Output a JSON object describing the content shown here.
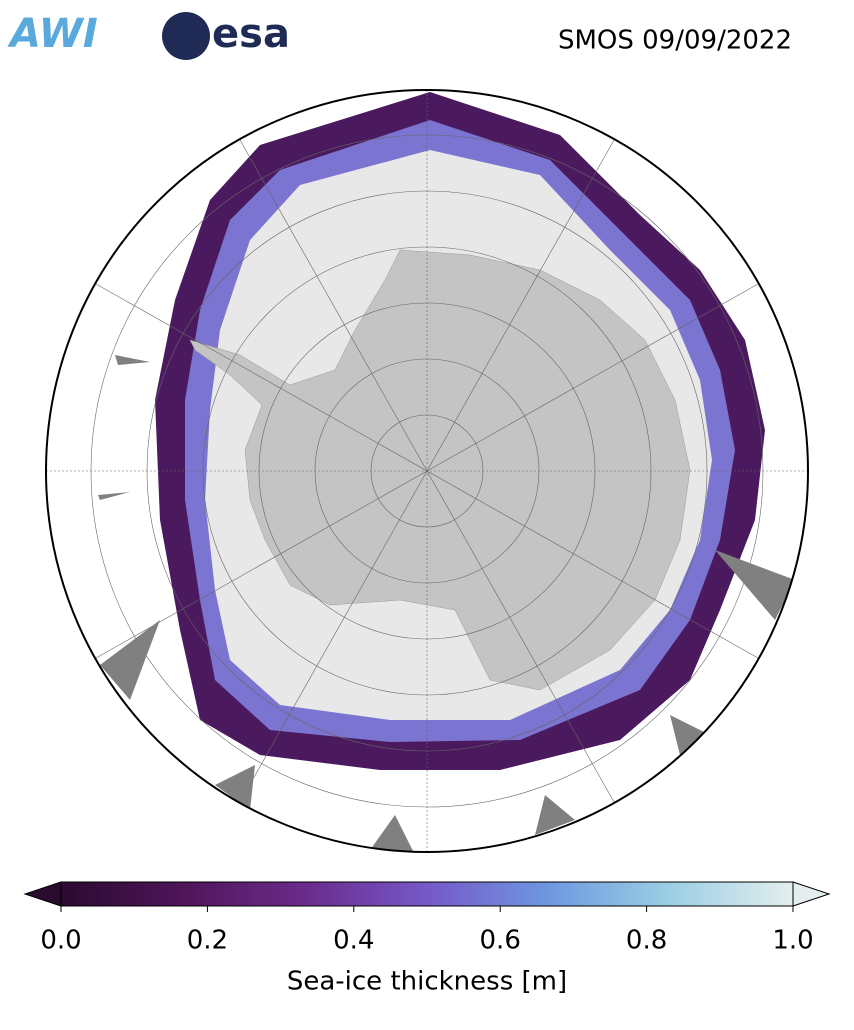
{
  "header": {
    "logos": [
      "AWI",
      "esa"
    ],
    "title": "SMOS 09/09/2022"
  },
  "map": {
    "colorbar": {
      "label": "Sea-ice thickness [m]",
      "lim": [
        0,
        1
      ],
      "ticks": [
        {
          "value": 0,
          "label": "0.0"
        },
        0.2,
        0.4,
        0.6,
        0.8,
        {
          "value": 1,
          "label": "1.0"
        }
      ],
      "colors": [
        "#2b0a30",
        "#4e1559",
        "#6a2c8c",
        "#7658c8",
        "#6e98e0",
        "#9ccfe4",
        "#e4eeee"
      ]
    }
  }
}
